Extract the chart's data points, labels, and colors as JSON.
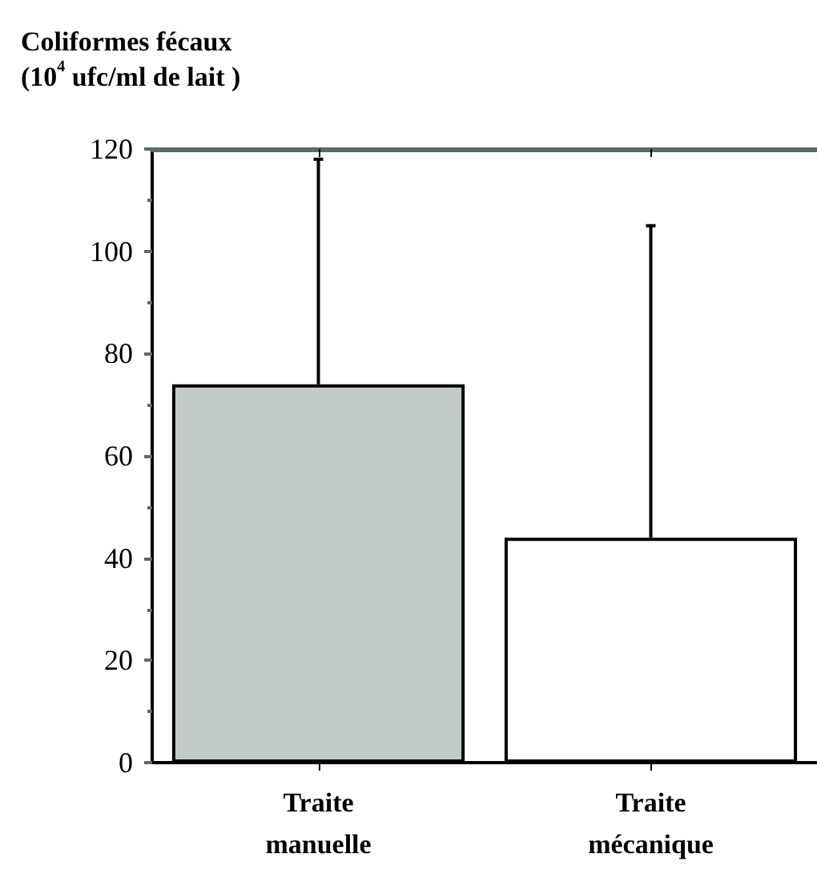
{
  "chart_data": {
    "type": "bar",
    "ylabel": "Coliformes fécaux\n(10$^{4}$ ufc/ml de lait )",
    "categories": [
      "Traite\nmanuelle",
      "Traite\nmécanique"
    ],
    "values": [
      74,
      44
    ],
    "colors": [
      "#c3cbc9",
      "#ffffff"
    ],
    "errors": [
      [
        74,
        118
      ],
      [
        44,
        105
      ]
    ],
    "ylim": [
      0,
      120
    ],
    "yticks": [
      0,
      20,
      40,
      60,
      80,
      100,
      120
    ],
    "grid": false
  }
}
